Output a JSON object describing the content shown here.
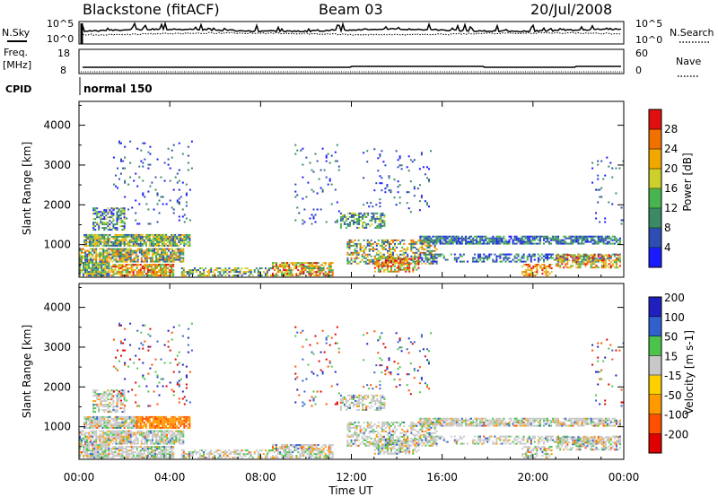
{
  "header": {
    "station": "Blackstone (fitACF)",
    "beam": "Beam 03",
    "date": "20/Jul/2008"
  },
  "status_panels": {
    "nsky_label": "N.Sky",
    "nsky_ticks": [
      "10^5",
      "10^0"
    ],
    "nsearch_label": "N.Search",
    "freq_label": "Freq.",
    "freq_unit": "[MHz]",
    "freq_ticks": [
      "18",
      "8"
    ],
    "nave_label": "Nave",
    "nave_ticks": [
      "60",
      "0"
    ],
    "cpid_label": "CPID",
    "cpid_value": "normal 150"
  },
  "colors": {
    "power": [
      "#1a1aff",
      "#2d4db2",
      "#3a8a66",
      "#48b450",
      "#cbd02a",
      "#f0a800",
      "#f07000",
      "#e01010"
    ],
    "velocity": [
      "#e00000",
      "#ff5000",
      "#ff9a00",
      "#ffd000",
      "#c8c8c8",
      "#4cc44c",
      "#3060cc",
      "#2020c0"
    ]
  },
  "chart_data": [
    {
      "type": "heatmap",
      "title": "Power",
      "xlabel": "Time UT",
      "ylabel": "Slant Range [km]",
      "x_ticks": [
        "00:00",
        "04:00",
        "08:00",
        "12:00",
        "16:00",
        "20:00",
        "00:00"
      ],
      "xlim_hours": [
        0,
        24
      ],
      "y_ticks": [
        1000,
        2000,
        3000,
        4000
      ],
      "ylim_km": [
        180,
        4600
      ],
      "colorbar": {
        "label": "Power [dB]",
        "ticks": [
          4,
          8,
          12,
          16,
          20,
          24,
          28
        ],
        "range": [
          0,
          32
        ]
      }
    },
    {
      "type": "heatmap",
      "title": "Velocity",
      "xlabel": "Time UT",
      "ylabel": "Slant Range [km]",
      "x_ticks": [
        "00:00",
        "04:00",
        "08:00",
        "12:00",
        "16:00",
        "20:00",
        "00:00"
      ],
      "xlim_hours": [
        0,
        24
      ],
      "y_ticks": [
        1000,
        2000,
        3000,
        4000
      ],
      "ylim_km": [
        180,
        4600
      ],
      "colorbar": {
        "label": "Velocity [m s-1]",
        "ticks": [
          "200",
          "100",
          "50",
          "15",
          "-15",
          "-50",
          "-100",
          "-200"
        ]
      }
    }
  ]
}
